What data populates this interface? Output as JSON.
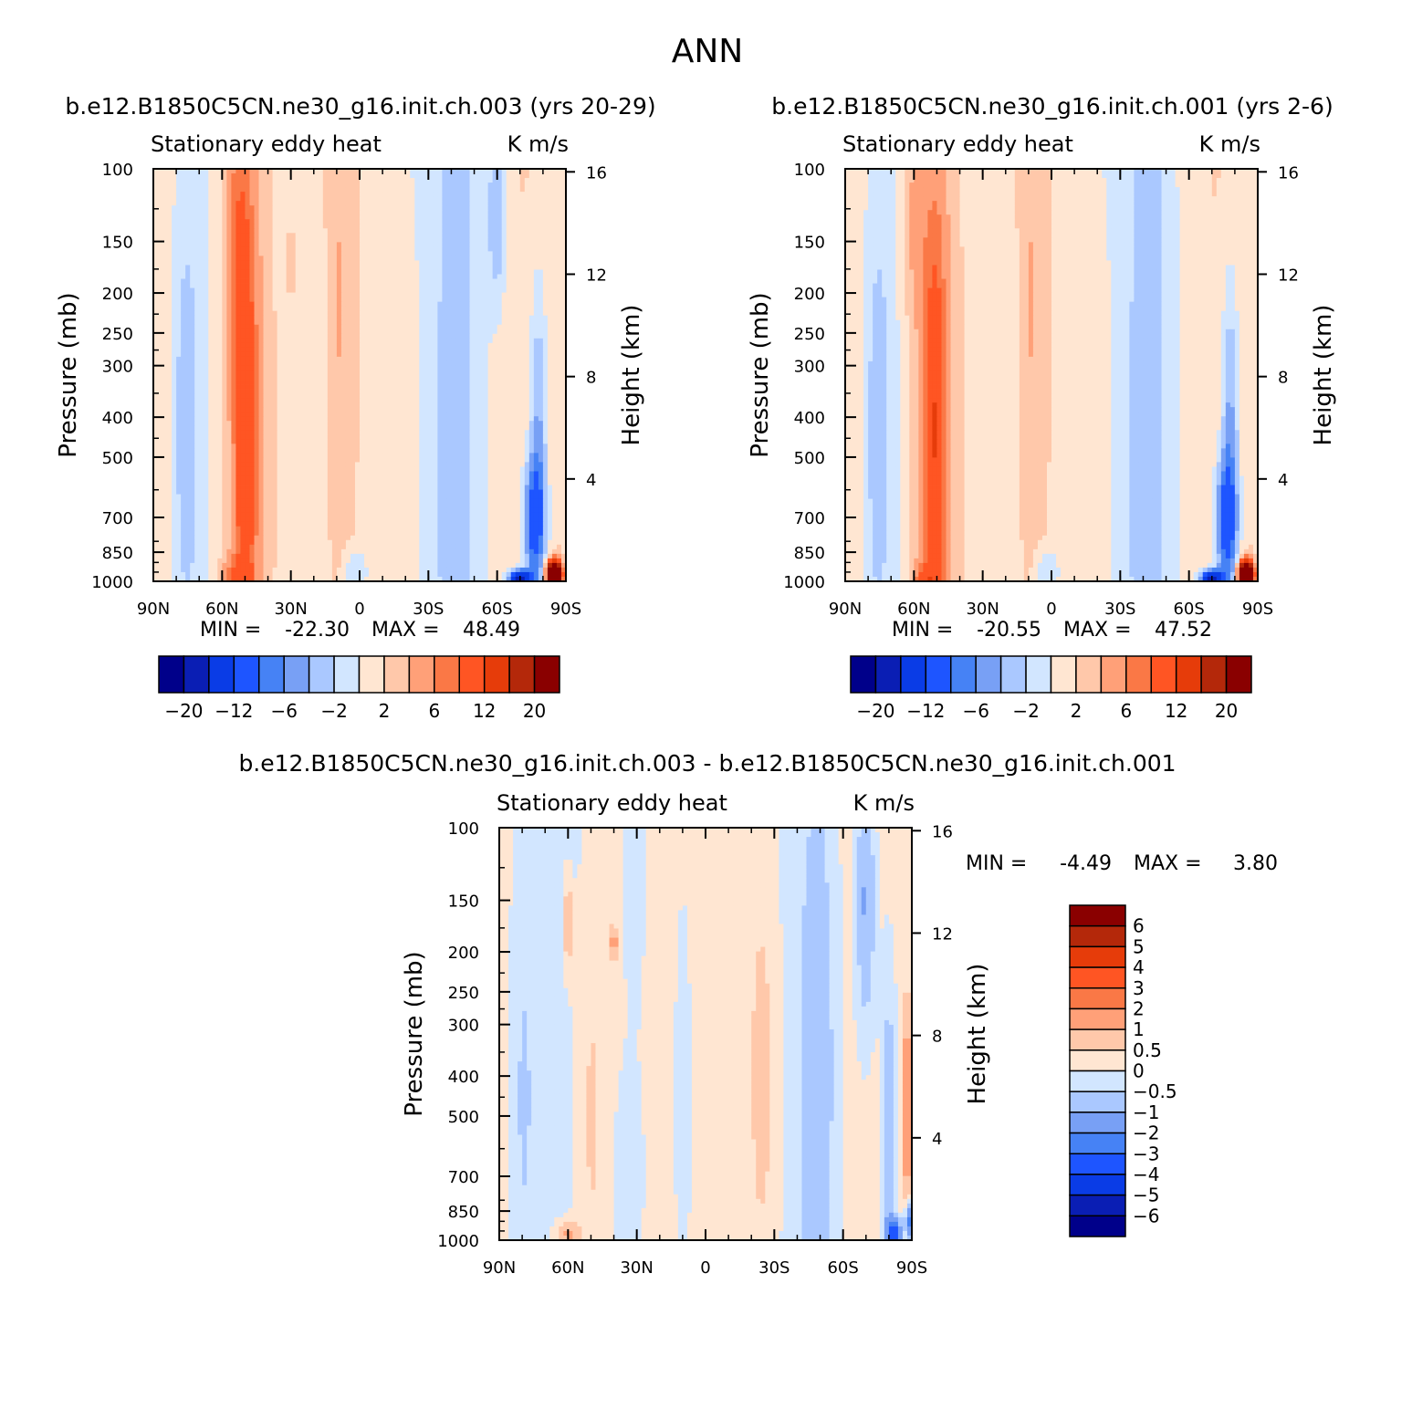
{
  "main_title": "ANN",
  "palette_main": [
    "#00008a",
    "#0a1eb4",
    "#0a3ce6",
    "#1e55ff",
    "#4682f5",
    "#78a0f5",
    "#aac8ff",
    "#d2e6ff",
    "#ffe6d2",
    "#ffc8aa",
    "#ffa078",
    "#fa7846",
    "#ff5523",
    "#e63c0a",
    "#b4280a",
    "#8a0000"
  ],
  "chart_data": [
    {
      "type": "heatmap",
      "title": "b.e12.B1850C5CN.ne30_g16.init.ch.003 (yrs 20-29)",
      "left_label": "Stationary eddy heat",
      "right_label": "K m/s",
      "ylabel": "Pressure (mb)",
      "ylabel_right": "Height (km)",
      "y_ticks": [
        "100",
        "150",
        "200",
        "250",
        "300",
        "400",
        "500",
        "700",
        "850",
        "1000"
      ],
      "y_right_ticks": [
        "16",
        "12",
        "8",
        "4"
      ],
      "x_ticks": [
        "90N",
        "60N",
        "30N",
        "0",
        "30S",
        "60S",
        "90S"
      ],
      "stats": {
        "min_label": "MIN =",
        "min": "-22.30",
        "max_label": "MAX =",
        "max": "48.49"
      },
      "levels": [
        "-20",
        "-12",
        "-6",
        "-2",
        "2",
        "6",
        "12",
        "20"
      ],
      "fields": [
        {
          "lat": 76,
          "p": 420,
          "w": 6,
          "h": 1.3,
          "v": -3.5
        },
        {
          "lat": 50,
          "p": 450,
          "w": 11,
          "h": 2.8,
          "v": 7
        },
        {
          "lat": 50,
          "p": 420,
          "w": 4,
          "h": 1.1,
          "v": 6
        },
        {
          "lat": 54,
          "p": 130,
          "w": 5,
          "h": 0.6,
          "v": 3
        },
        {
          "lat": 30,
          "p": 170,
          "w": 2,
          "h": 0.15,
          "v": 3
        },
        {
          "lat": 18,
          "p": 300,
          "w": 7,
          "h": 1.3,
          "v": -2.5
        },
        {
          "lat": 10,
          "p": 220,
          "w": 7,
          "h": 1.2,
          "v": 2.5
        },
        {
          "lat": -20,
          "p": 420,
          "w": 7,
          "h": 1.4,
          "v": 2.2
        },
        {
          "lat": -44,
          "p": 450,
          "w": 10,
          "h": 3,
          "v": -2.5
        },
        {
          "lat": -60,
          "p": 130,
          "w": 4,
          "h": 0.5,
          "v": -5
        },
        {
          "lat": -78,
          "p": 420,
          "w": 4,
          "h": 0.9,
          "v": -6
        },
        {
          "lat": -76,
          "p": 720,
          "w": 5,
          "h": 0.35,
          "v": -10
        },
        {
          "lat": -85,
          "p": 960,
          "w": 3,
          "h": 0.07,
          "v": 40
        },
        {
          "lat": -70,
          "p": 990,
          "w": 5,
          "h": 0.05,
          "v": -20
        },
        {
          "lat": 55,
          "p": 990,
          "w": 6,
          "h": 0.1,
          "v": 5
        },
        {
          "lat": 2,
          "p": 950,
          "w": 5,
          "h": 0.12,
          "v": -4
        }
      ]
    },
    {
      "type": "heatmap",
      "title": "b.e12.B1850C5CN.ne30_g16.init.ch.001 (yrs 2-6)",
      "left_label": "Stationary eddy heat",
      "right_label": "K m/s",
      "ylabel": "Pressure (mb)",
      "ylabel_right": "Height (km)",
      "y_ticks": [
        "100",
        "150",
        "200",
        "250",
        "300",
        "400",
        "500",
        "700",
        "850",
        "1000"
      ],
      "y_right_ticks": [
        "16",
        "12",
        "8",
        "4"
      ],
      "x_ticks": [
        "90N",
        "60N",
        "30N",
        "0",
        "30S",
        "60S",
        "90S"
      ],
      "stats": {
        "min_label": "MIN =",
        "min": "-20.55",
        "max_label": "MAX =",
        "max": "47.52"
      },
      "levels": [
        "-20",
        "-12",
        "-6",
        "-2",
        "2",
        "6",
        "12",
        "20"
      ],
      "fields": [
        {
          "lat": 76,
          "p": 430,
          "w": 6,
          "h": 1.3,
          "v": -3.5
        },
        {
          "lat": 51,
          "p": 450,
          "w": 11,
          "h": 2.8,
          "v": 7
        },
        {
          "lat": 51,
          "p": 430,
          "w": 4,
          "h": 1.0,
          "v": 6
        },
        {
          "lat": 60,
          "p": 130,
          "w": 5,
          "h": 0.6,
          "v": 3
        },
        {
          "lat": 18,
          "p": 300,
          "w": 7,
          "h": 1.3,
          "v": -2.5
        },
        {
          "lat": 10,
          "p": 220,
          "w": 7,
          "h": 1.2,
          "v": 2.5
        },
        {
          "lat": -20,
          "p": 420,
          "w": 7,
          "h": 1.4,
          "v": 2.2
        },
        {
          "lat": -44,
          "p": 450,
          "w": 10,
          "h": 3,
          "v": -2.5
        },
        {
          "lat": -78,
          "p": 430,
          "w": 4,
          "h": 0.9,
          "v": -6.5
        },
        {
          "lat": -76,
          "p": 720,
          "w": 5,
          "h": 0.35,
          "v": -10
        },
        {
          "lat": -85,
          "p": 960,
          "w": 3,
          "h": 0.07,
          "v": 40
        },
        {
          "lat": -70,
          "p": 990,
          "w": 5,
          "h": 0.05,
          "v": -20
        },
        {
          "lat": 55,
          "p": 990,
          "w": 6,
          "h": 0.1,
          "v": 5
        },
        {
          "lat": 2,
          "p": 950,
          "w": 5,
          "h": 0.12,
          "v": -4
        }
      ]
    },
    {
      "type": "heatmap",
      "title": "b.e12.B1850C5CN.ne30_g16.init.ch.003 - b.e12.B1850C5CN.ne30_g16.init.ch.001",
      "left_label": "Stationary eddy heat",
      "right_label": "K m/s",
      "ylabel": "Pressure (mb)",
      "ylabel_right": "Height (km)",
      "y_ticks": [
        "100",
        "150",
        "200",
        "250",
        "300",
        "400",
        "500",
        "700",
        "850",
        "1000"
      ],
      "y_right_ticks": [
        "16",
        "12",
        "8",
        "4"
      ],
      "x_ticks": [
        "90N",
        "60N",
        "30N",
        "0",
        "30S",
        "60S",
        "90S"
      ],
      "stats": {
        "min_label": "MIN =",
        "min": "-4.49",
        "max_label": "MAX =",
        "max": "3.80"
      },
      "levels": [
        "6",
        "5",
        "4",
        "3",
        "2",
        "1",
        "0.5",
        "0",
        "-0.5",
        "-1",
        "-2",
        "-3",
        "-4",
        "-5",
        "-6"
      ],
      "fields": [
        {
          "lat": 80,
          "p": 450,
          "w": 7,
          "h": 1.6,
          "v": -0.7
        },
        {
          "lat": 60,
          "p": 170,
          "w": 2,
          "h": 0.25,
          "v": 1.2
        },
        {
          "lat": 40,
          "p": 190,
          "w": 2,
          "h": 0.1,
          "v": 1.2
        },
        {
          "lat": 30,
          "p": 140,
          "w": 5,
          "h": 0.8,
          "v": -0.6
        },
        {
          "lat": 50,
          "p": 500,
          "w": 8,
          "h": 1.5,
          "v": 0.7
        },
        {
          "lat": 10,
          "p": 450,
          "w": 5,
          "h": 1.6,
          "v": -0.8
        },
        {
          "lat": 32,
          "p": 700,
          "w": 7,
          "h": 0.6,
          "v": -0.6
        },
        {
          "lat": -25,
          "p": 400,
          "w": 8,
          "h": 1.6,
          "v": 0.8
        },
        {
          "lat": -50,
          "p": 400,
          "w": 9,
          "h": 2,
          "v": -0.9
        },
        {
          "lat": -70,
          "p": 150,
          "w": 5,
          "h": 0.9,
          "v": -1.5
        },
        {
          "lat": -80,
          "p": 500,
          "w": 4,
          "h": 1.1,
          "v": -1.3
        },
        {
          "lat": -88,
          "p": 480,
          "w": 2,
          "h": 0.4,
          "v": 2
        },
        {
          "lat": -82,
          "p": 960,
          "w": 3,
          "h": 0.08,
          "v": -4
        },
        {
          "lat": 60,
          "p": 970,
          "w": 5,
          "h": 0.08,
          "v": 1.2
        },
        {
          "lat": -90,
          "p": 900,
          "w": 3,
          "h": 0.1,
          "v": -3
        }
      ]
    }
  ]
}
